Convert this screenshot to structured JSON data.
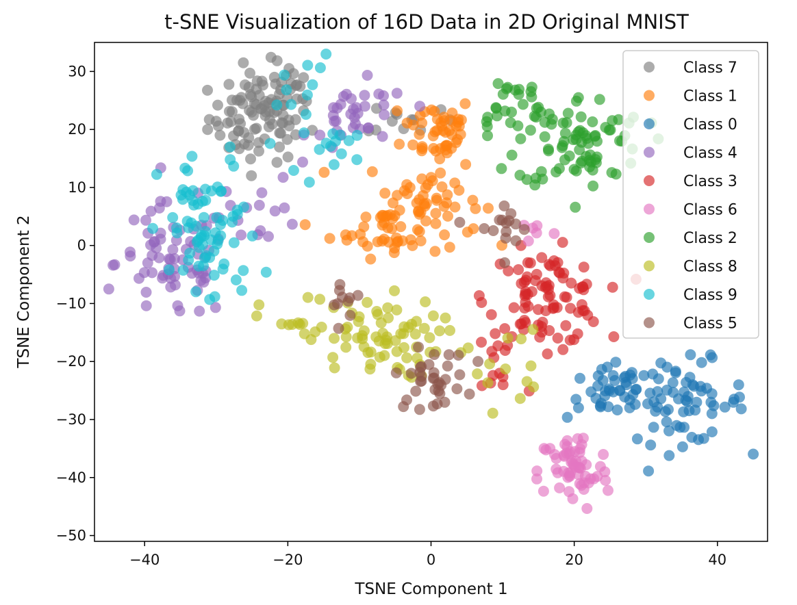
{
  "chart_data": {
    "type": "scatter",
    "title": "t-SNE Visualization of 16D Data in 2D Original MNIST",
    "xlabel": "TSNE Component 1",
    "ylabel": "TSNE Component 2",
    "xlim": [
      -47,
      47
    ],
    "ylim": [
      -51,
      35
    ],
    "xticks": [
      -40,
      -20,
      0,
      20,
      40
    ],
    "yticks": [
      -50,
      -40,
      -30,
      -20,
      -10,
      0,
      10,
      20,
      30
    ],
    "grid": false,
    "legend_position": "top-right",
    "point_opacity": 0.65,
    "series": [
      {
        "name": "Class 7",
        "color": "#7f7f7f",
        "clusters": [
          {
            "cx": -24,
            "cy": 22,
            "sx": 3.5,
            "sy": 3.8,
            "n": 90
          },
          {
            "cx": -20,
            "cy": 27,
            "sx": 2,
            "sy": 2.5,
            "n": 15
          },
          {
            "cx": -3,
            "cy": 22,
            "sx": 3,
            "sy": 1.5,
            "n": 12
          }
        ]
      },
      {
        "name": "Class 1",
        "color": "#ff7f0e",
        "clusters": [
          {
            "cx": 1,
            "cy": 20,
            "sx": 2.5,
            "sy": 3,
            "n": 45
          },
          {
            "cx": -1,
            "cy": 8,
            "sx": 4,
            "sy": 4,
            "n": 50
          },
          {
            "cx": -6,
            "cy": 3,
            "sx": 4,
            "sy": 2.5,
            "n": 40
          }
        ]
      },
      {
        "name": "Class 0",
        "color": "#1f77b4",
        "clusters": [
          {
            "cx": 35,
            "cy": -27,
            "sx": 4.5,
            "sy": 3.5,
            "n": 70
          },
          {
            "cx": 25,
            "cy": -25,
            "sx": 3,
            "sy": 2.5,
            "n": 35
          }
        ]
      },
      {
        "name": "Class 4",
        "color": "#9467bd",
        "clusters": [
          {
            "cx": -36,
            "cy": -3,
            "sx": 4,
            "sy": 5,
            "n": 70
          },
          {
            "cx": -10,
            "cy": 22,
            "sx": 3.5,
            "sy": 3,
            "n": 35
          },
          {
            "cx": -24,
            "cy": 6,
            "sx": 3,
            "sy": 3,
            "n": 15
          }
        ]
      },
      {
        "name": "Class 3",
        "color": "#d62728",
        "clusters": [
          {
            "cx": 16,
            "cy": -9,
            "sx": 4,
            "sy": 4,
            "n": 90
          },
          {
            "cx": 9,
            "cy": -20,
            "sx": 2,
            "sy": 3.5,
            "n": 12
          }
        ]
      },
      {
        "name": "Class 6",
        "color": "#e377c2",
        "clusters": [
          {
            "cx": 20,
            "cy": -39,
            "sx": 2.5,
            "sy": 3.5,
            "n": 60
          },
          {
            "cx": 14,
            "cy": 3,
            "sx": 1.5,
            "sy": 1.5,
            "n": 6
          }
        ]
      },
      {
        "name": "Class 2",
        "color": "#2ca02c",
        "clusters": [
          {
            "cx": 21,
            "cy": 18,
            "sx": 4.5,
            "sy": 4,
            "n": 80
          },
          {
            "cx": 11,
            "cy": 24,
            "sx": 3,
            "sy": 3,
            "n": 25
          }
        ]
      },
      {
        "name": "Class 8",
        "color": "#bcbd22",
        "clusters": [
          {
            "cx": -8,
            "cy": -16,
            "sx": 4.5,
            "sy": 3.5,
            "n": 70
          },
          {
            "cx": 10,
            "cy": -20,
            "sx": 3,
            "sy": 4,
            "n": 14
          },
          {
            "cx": -20,
            "cy": -13,
            "sx": 2,
            "sy": 2,
            "n": 10
          }
        ]
      },
      {
        "name": "Class 9",
        "color": "#17becf",
        "clusters": [
          {
            "cx": -31,
            "cy": 2,
            "sx": 3.5,
            "sy": 7,
            "n": 75
          },
          {
            "cx": -18,
            "cy": 24,
            "sx": 2,
            "sy": 5,
            "n": 15
          },
          {
            "cx": -13,
            "cy": 17,
            "sx": 2.5,
            "sy": 2,
            "n": 10
          }
        ]
      },
      {
        "name": "Class 5",
        "color": "#8c564b",
        "clusters": [
          {
            "cx": 0,
            "cy": -23,
            "sx": 2.5,
            "sy": 2.5,
            "n": 35
          },
          {
            "cx": 10,
            "cy": 3,
            "sx": 2,
            "sy": 2.5,
            "n": 15
          },
          {
            "cx": -12,
            "cy": -8,
            "sx": 2,
            "sy": 2,
            "n": 10
          }
        ]
      }
    ]
  }
}
